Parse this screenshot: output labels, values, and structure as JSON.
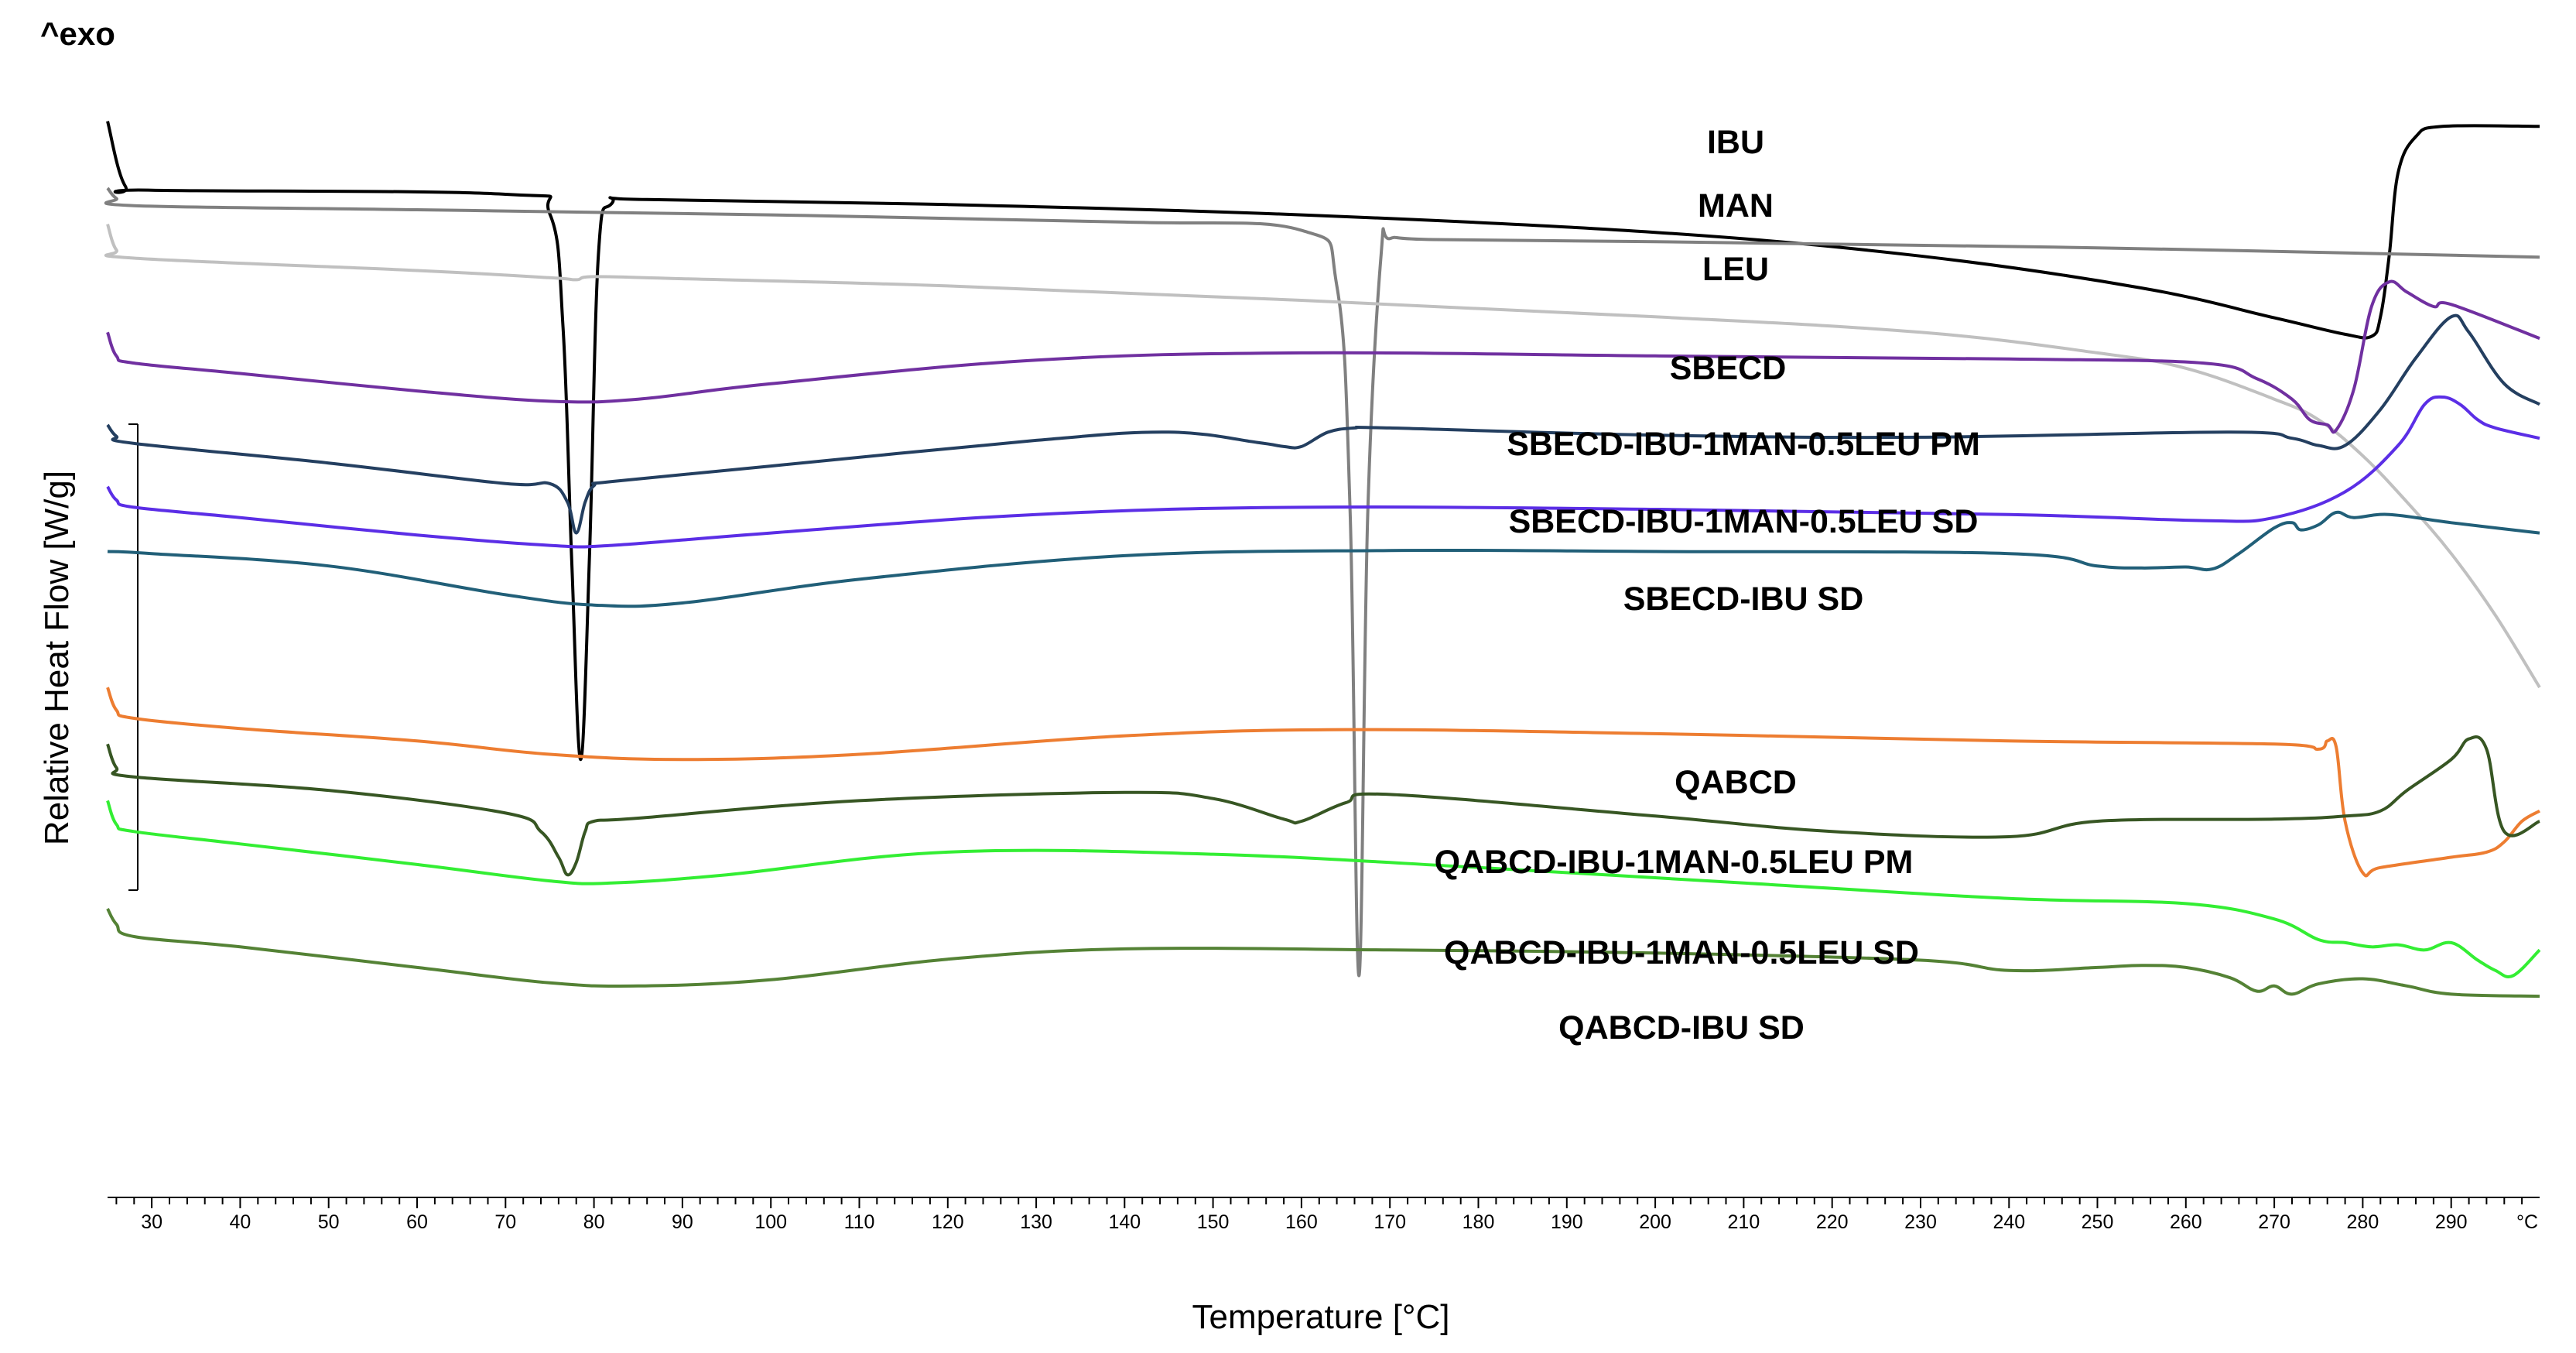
{
  "chart_data": {
    "type": "line",
    "title": "",
    "exo_label": "^exo",
    "xlabel": "Temperature  [°C]",
    "ylabel": "Relative Heat Flow  [W/g]",
    "xlim": [
      25,
      300
    ],
    "ylim": [
      0,
      1
    ],
    "x_unit_label": "°C",
    "x_ticks": [
      30,
      40,
      50,
      60,
      70,
      80,
      90,
      100,
      110,
      120,
      130,
      140,
      150,
      160,
      170,
      180,
      190,
      200,
      210,
      220,
      230,
      240,
      250,
      260,
      270,
      280,
      290
    ],
    "series": [
      {
        "name": "IBU",
        "color": "#000000",
        "x": [
          25,
          27,
          30,
          70,
          75,
          76.5,
          77.5,
          78.5,
          79.5,
          80.5,
          82,
          86,
          120,
          160,
          200,
          230,
          255,
          270,
          278,
          281,
          282,
          283,
          284,
          286,
          289,
          300
        ],
        "y": [
          0.98,
          0.917,
          0.913,
          0.909,
          0.89,
          0.78,
          0.55,
          0.36,
          0.56,
          0.85,
          0.9,
          0.904,
          0.899,
          0.889,
          0.872,
          0.849,
          0.818,
          0.789,
          0.773,
          0.771,
          0.79,
          0.85,
          0.93,
          0.965,
          0.975,
          0.975
        ]
      },
      {
        "name": "MAN",
        "color": "#808080",
        "x": [
          25,
          26,
          28,
          60,
          100,
          140,
          160,
          164,
          165.5,
          166.5,
          167.5,
          169,
          170,
          175,
          200,
          250,
          300
        ],
        "y": [
          0.915,
          0.905,
          0.898,
          0.894,
          0.889,
          0.882,
          0.874,
          0.82,
          0.6,
          0.15,
          0.6,
          0.85,
          0.866,
          0.865,
          0.863,
          0.857,
          0.848
        ]
      },
      {
        "name": "LEU",
        "color": "#c0c0c0",
        "x": [
          25,
          26,
          28,
          60,
          75,
          78,
          80,
          90,
          120,
          160,
          200,
          230,
          250,
          260,
          270,
          275,
          280,
          285,
          290,
          295,
          300
        ],
        "y": [
          0.88,
          0.855,
          0.847,
          0.835,
          0.828,
          0.826,
          0.829,
          0.827,
          0.82,
          0.806,
          0.79,
          0.775,
          0.755,
          0.74,
          0.71,
          0.69,
          0.655,
          0.61,
          0.56,
          0.5,
          0.43
        ]
      },
      {
        "name": "SBECD",
        "color": "#7030a0",
        "x": [
          25,
          26,
          28,
          40,
          60,
          75,
          85,
          100,
          130,
          160,
          200,
          240,
          262,
          268,
          272,
          274,
          276,
          277,
          279,
          281,
          283,
          285,
          288,
          290,
          300
        ],
        "y": [
          0.775,
          0.752,
          0.745,
          0.735,
          0.718,
          0.708,
          0.71,
          0.725,
          0.748,
          0.755,
          0.752,
          0.749,
          0.745,
          0.73,
          0.71,
          0.69,
          0.685,
          0.68,
          0.72,
          0.8,
          0.824,
          0.814,
          0.8,
          0.802,
          0.769
        ]
      },
      {
        "name": "SBECD-IBU-1MAN-0.5LEU PM",
        "color": "#243f60",
        "x": [
          25,
          26,
          28,
          50,
          70,
          75,
          77,
          78,
          79,
          80,
          82,
          100,
          130,
          145,
          155,
          158,
          160,
          163,
          166,
          170,
          200,
          230,
          265,
          272,
          275,
          278,
          282,
          286,
          290,
          292,
          296,
          300
        ],
        "y": [
          0.685,
          0.674,
          0.667,
          0.648,
          0.628,
          0.628,
          0.61,
          0.58,
          0.61,
          0.626,
          0.63,
          0.645,
          0.67,
          0.678,
          0.668,
          0.664,
          0.664,
          0.678,
          0.682,
          0.682,
          0.675,
          0.673,
          0.678,
          0.672,
          0.665,
          0.665,
          0.7,
          0.75,
          0.79,
          0.775,
          0.725,
          0.705
        ]
      },
      {
        "name": "SBECD-IBU-1MAN-0.5LEU SD",
        "color": "#5b2ee6",
        "x": [
          25,
          26,
          28,
          40,
          60,
          75,
          82,
          100,
          130,
          160,
          200,
          240,
          262,
          270,
          278,
          284,
          287,
          289,
          291,
          293,
          295,
          300
        ],
        "y": [
          0.625,
          0.612,
          0.605,
          0.595,
          0.578,
          0.568,
          0.568,
          0.58,
          0.598,
          0.605,
          0.603,
          0.598,
          0.592,
          0.595,
          0.62,
          0.665,
          0.705,
          0.712,
          0.705,
          0.69,
          0.682,
          0.672
        ]
      },
      {
        "name": "SBECD-IBU SD",
        "color": "#215f78",
        "x": [
          25,
          30,
          50,
          70,
          80,
          90,
          110,
          140,
          170,
          200,
          240,
          250,
          255,
          260,
          263,
          266,
          270,
          272,
          273,
          275,
          277,
          279,
          283,
          290,
          300
        ],
        "y": [
          0.562,
          0.56,
          0.548,
          0.52,
          0.51,
          0.512,
          0.535,
          0.558,
          0.563,
          0.562,
          0.56,
          0.548,
          0.546,
          0.547,
          0.545,
          0.56,
          0.585,
          0.59,
          0.583,
          0.588,
          0.6,
          0.595,
          0.598,
          0.59,
          0.58
        ]
      },
      {
        "name": "QABCD",
        "color": "#ed7d31",
        "x": [
          25,
          26,
          28,
          40,
          60,
          75,
          90,
          110,
          140,
          165,
          200,
          240,
          270,
          275,
          276,
          277,
          278,
          280,
          282,
          290,
          294,
          296,
          298,
          300
        ],
        "y": [
          0.43,
          0.408,
          0.4,
          0.39,
          0.378,
          0.365,
          0.36,
          0.365,
          0.383,
          0.389,
          0.385,
          0.378,
          0.375,
          0.37,
          0.378,
          0.372,
          0.3,
          0.25,
          0.255,
          0.265,
          0.27,
          0.28,
          0.3,
          0.31
        ]
      },
      {
        "name": "QABCD-IBU-1MAN-0.5LEU PM",
        "color": "#375623",
        "x": [
          25,
          26,
          28,
          50,
          70,
          74,
          76,
          77,
          78,
          79,
          80,
          85,
          110,
          140,
          150,
          158,
          160,
          165,
          170,
          200,
          220,
          240,
          250,
          270,
          278,
          282,
          285,
          290,
          292,
          294,
          296,
          300
        ],
        "y": [
          0.375,
          0.352,
          0.343,
          0.33,
          0.308,
          0.29,
          0.265,
          0.248,
          0.26,
          0.29,
          0.3,
          0.303,
          0.32,
          0.328,
          0.322,
          0.302,
          0.3,
          0.318,
          0.326,
          0.305,
          0.29,
          0.285,
          0.3,
          0.302,
          0.305,
          0.31,
          0.33,
          0.36,
          0.38,
          0.37,
          0.29,
          0.3
        ]
      },
      {
        "name": "QABCD-IBU-1MAN-0.5LEU SD",
        "color": "#33ee33",
        "x": [
          25,
          26,
          28,
          40,
          60,
          75,
          82,
          95,
          120,
          150,
          180,
          210,
          240,
          260,
          270,
          275,
          278,
          281,
          284,
          287,
          290,
          293,
          295,
          297,
          300
        ],
        "y": [
          0.32,
          0.297,
          0.29,
          0.278,
          0.258,
          0.242,
          0.24,
          0.248,
          0.27,
          0.268,
          0.255,
          0.24,
          0.225,
          0.22,
          0.205,
          0.185,
          0.182,
          0.178,
          0.18,
          0.175,
          0.182,
          0.165,
          0.155,
          0.15,
          0.175
        ]
      },
      {
        "name": "QABCD-IBU SD",
        "color": "#548235",
        "x": [
          25,
          26,
          28,
          40,
          60,
          75,
          85,
          100,
          120,
          140,
          170,
          200,
          230,
          240,
          250,
          255,
          260,
          265,
          268,
          270,
          272,
          275,
          280,
          285,
          290,
          300
        ],
        "y": [
          0.215,
          0.2,
          0.188,
          0.178,
          0.158,
          0.143,
          0.14,
          0.146,
          0.166,
          0.176,
          0.175,
          0.172,
          0.165,
          0.155,
          0.158,
          0.16,
          0.158,
          0.148,
          0.135,
          0.14,
          0.132,
          0.142,
          0.147,
          0.14,
          0.132,
          0.13
        ]
      }
    ]
  }
}
